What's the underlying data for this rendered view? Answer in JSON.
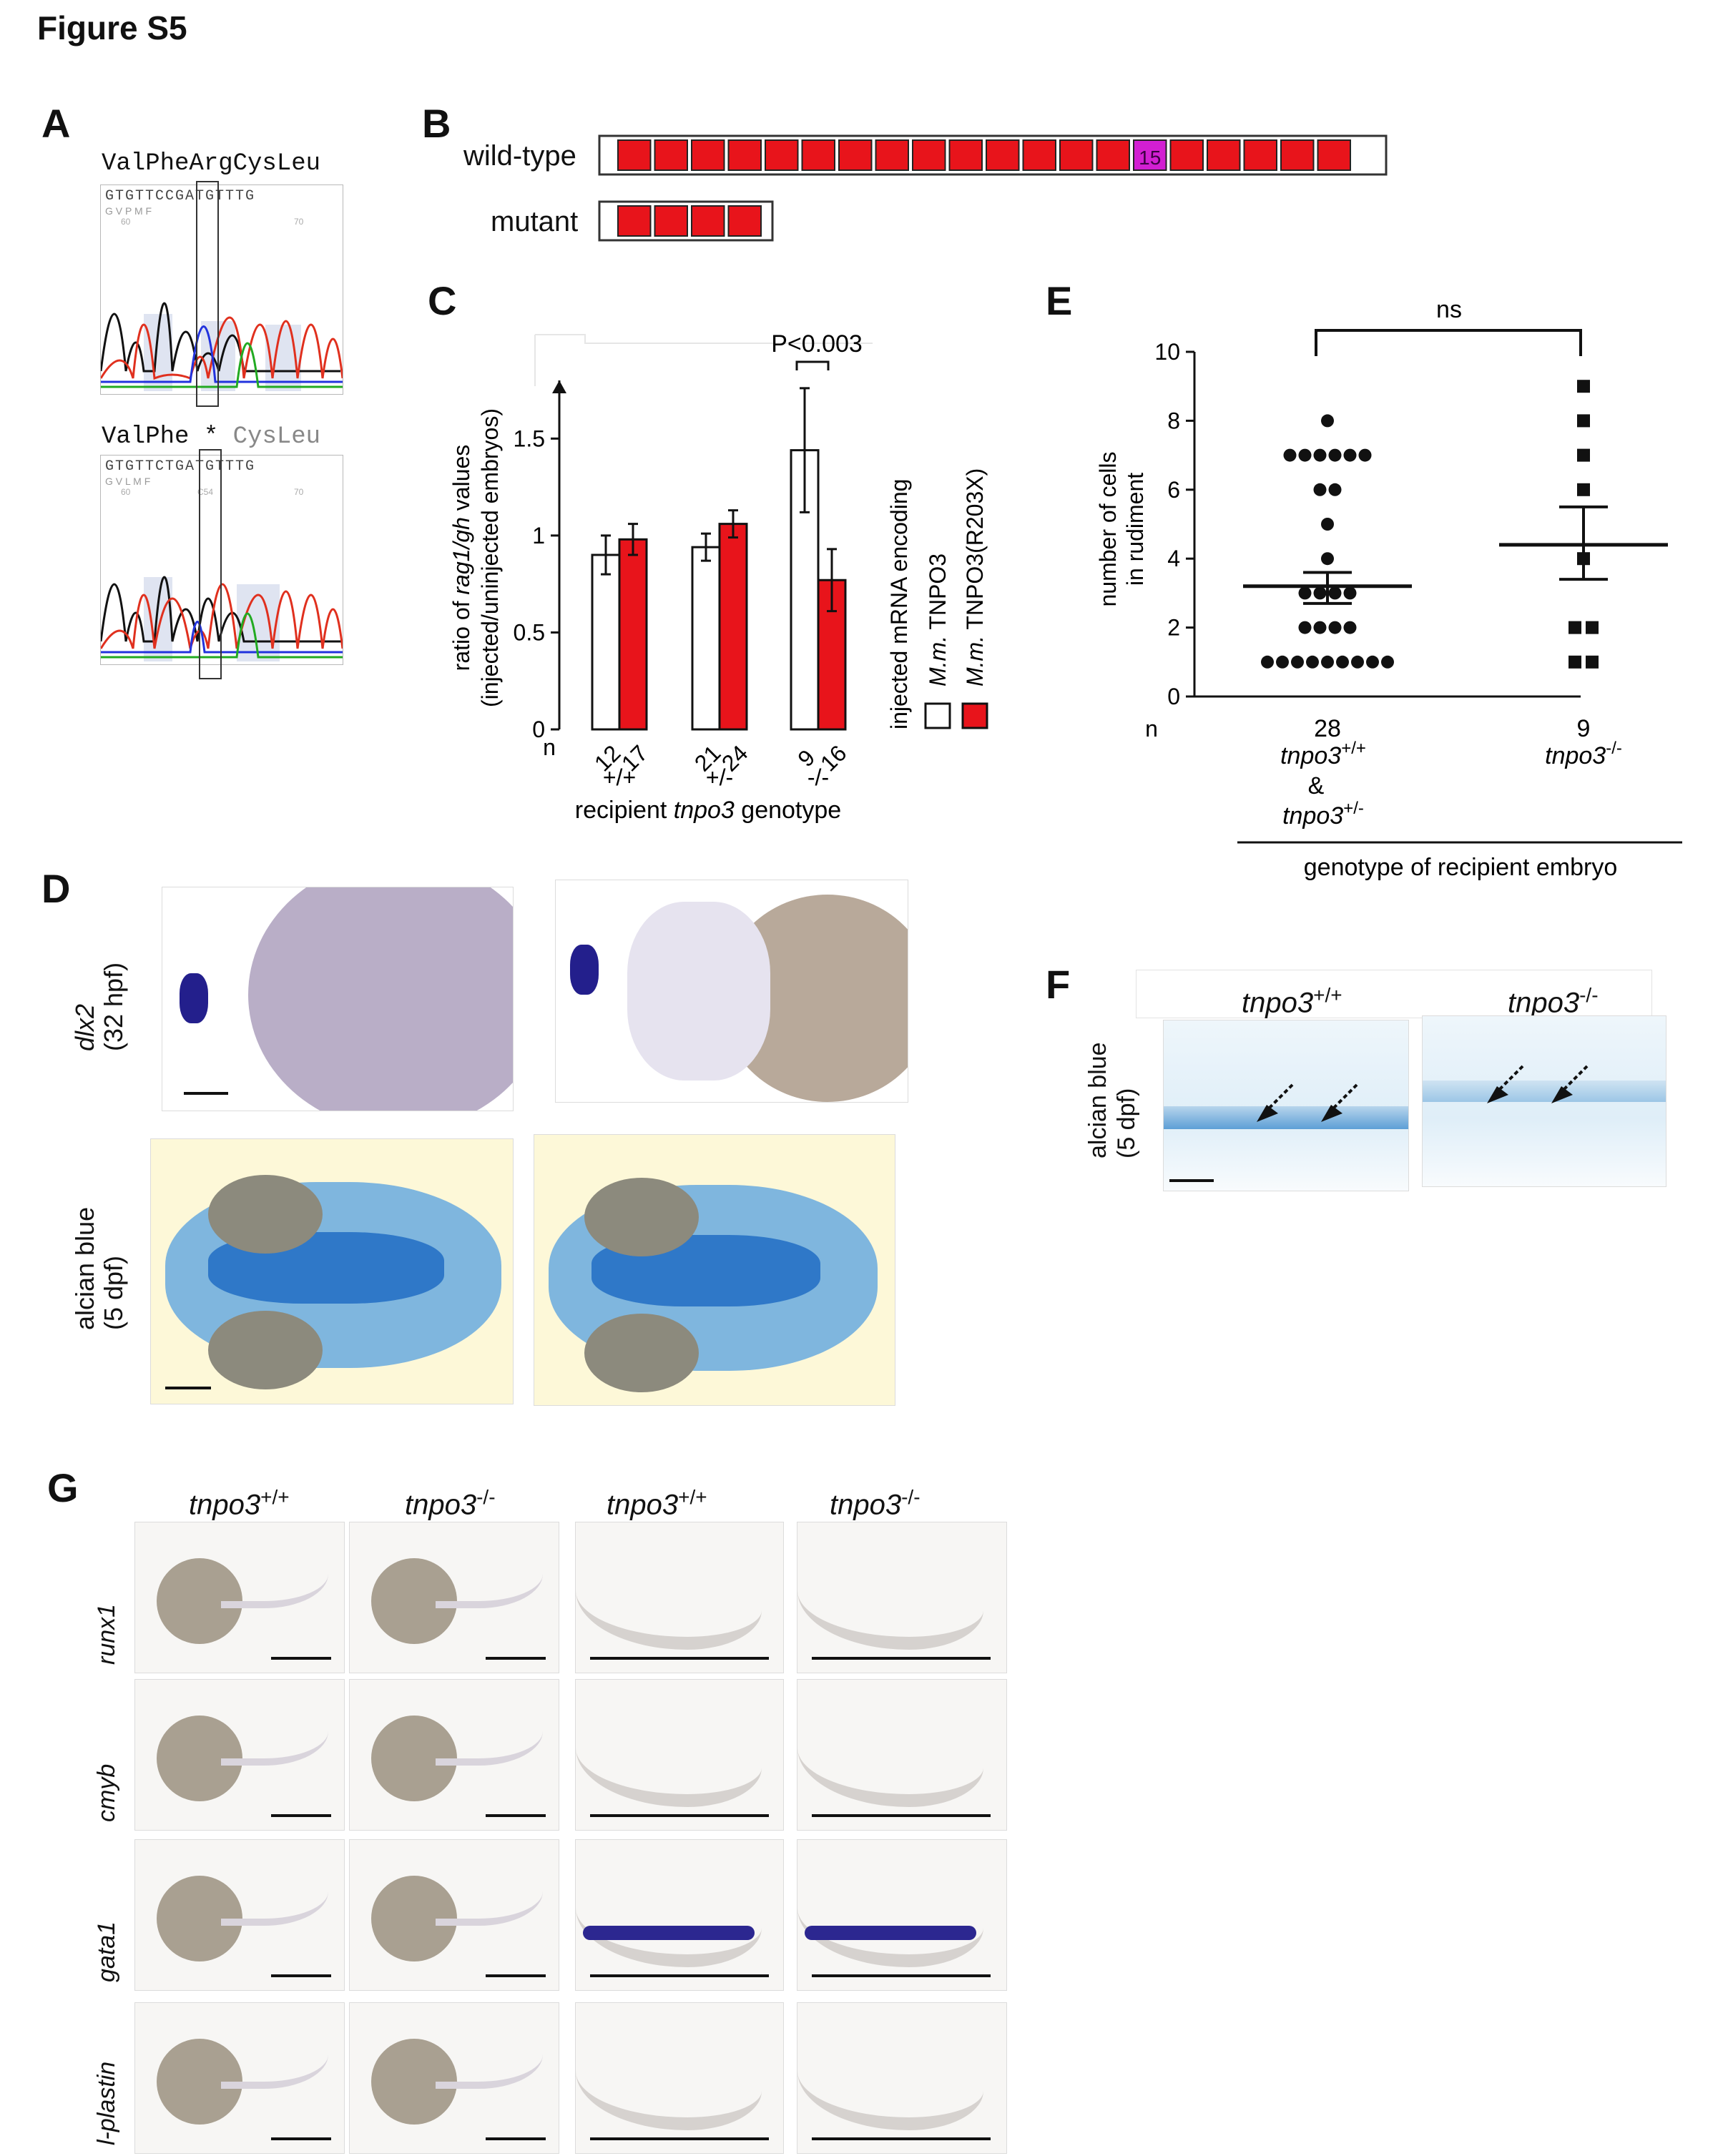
{
  "figure": {
    "title": "Figure S5"
  },
  "panels": {
    "A": "A",
    "B": "B",
    "C": "C",
    "D": "D",
    "E": "E",
    "F": "F",
    "G": "G"
  },
  "panelA": {
    "wt_codons": "ValPheArgCysLeu",
    "mut_codons_left": "ValPhe",
    "mut_stop": "*",
    "mut_codons_right": "CysLeu",
    "wt_seq": "GTGTTCCGATGTTTG",
    "mut_seq": "GTGTTCTGATGTTTG",
    "wt_aa": "G  V  P  M  F",
    "mut_aa": "G  V  L  M  F",
    "wt_pos1": "60",
    "wt_pos2": "70",
    "mut_pos1": "60",
    "mut_pos2": "70",
    "mut_pos_c": "C54"
  },
  "panelB": {
    "wt_label": "wild-type",
    "mut_label": "mutant",
    "wt_blocks": 20,
    "mut_blocks": 4,
    "highlight_block_label": "15",
    "colors": {
      "block": "#e8141b",
      "highlight": "#d21fd2"
    }
  },
  "panelC": {
    "chart_data": {
      "type": "bar",
      "categories": [
        "+/+",
        "+/-",
        "-/-"
      ],
      "series": [
        {
          "name": "M.m. TNPO3",
          "values": [
            0.9,
            0.94,
            1.44
          ],
          "errors": [
            0.1,
            0.07,
            0.32
          ],
          "n": [
            "12",
            "21",
            "9"
          ],
          "color": "#ffffff"
        },
        {
          "name": "M.m. TNPO3(R203X)",
          "values": [
            0.98,
            1.06,
            0.77
          ],
          "errors": [
            0.08,
            0.07,
            0.16
          ],
          "n": [
            "17",
            "24",
            "16"
          ],
          "color": "#e8141b"
        }
      ],
      "ylim": [
        0,
        1.8
      ],
      "yticks": [
        "0",
        "0.5",
        "1",
        "1.5"
      ],
      "ylabel_line1_pre": "ratio of ",
      "ylabel_line1_italic": "rag1/gh",
      "ylabel_line1_post": " values",
      "ylabel_line2": "(injected/uninjected embryos)",
      "xlabel_pre": "recipient ",
      "xlabel_italic": "tnpo3",
      "xlabel_post": " genotype",
      "n_label": "n",
      "significance": "P<0.003",
      "legend_title": "injected mRNA encoding",
      "legend_prefix": "M.m.",
      "legend_items": [
        "TNPO3",
        "TNPO3(R203X)"
      ]
    }
  },
  "panelE": {
    "chart_data": {
      "type": "scatter",
      "categories": [
        "tnpo3+/+ & tnpo3+/-",
        "tnpo3-/-"
      ],
      "groups": [
        {
          "points": [
            8,
            7,
            7,
            7,
            7,
            7,
            7,
            6,
            6,
            5,
            4,
            3,
            3,
            3,
            3,
            2,
            2,
            2,
            2,
            1,
            1,
            1,
            1,
            1,
            1,
            1,
            1,
            1
          ],
          "mean": 3.2,
          "sem_low": 2.7,
          "sem_high": 3.6
        },
        {
          "points": [
            9,
            8,
            7,
            6,
            4,
            2,
            2,
            1,
            1
          ],
          "mean": 4.4,
          "sem_low": 3.4,
          "sem_high": 5.5
        }
      ],
      "ylim": [
        0,
        10
      ],
      "yticks": [
        "0",
        "2",
        "4",
        "6",
        "8",
        "10"
      ],
      "ylabel_line1": "number of cells",
      "ylabel_line2": "in rudiment",
      "n_label": "n",
      "n_values": [
        "28",
        "9"
      ],
      "significance": "ns",
      "xlabel": "genotype of recipient embryo",
      "g1_a": "tnpo3",
      "g1_a_sup": "+/+",
      "g1_amp": "&",
      "g1_b": "tnpo3",
      "g1_b_sup": "+/-",
      "g2": "tnpo3",
      "g2_sup": "-/-"
    }
  },
  "panelD": {
    "row1_label_italic": "dlx2",
    "row1_label_sub": "(32 hpf)",
    "row2_label": "alcian blue",
    "row2_label_sub": "(5 dpf)"
  },
  "panelF": {
    "col1": "tnpo3",
    "col1_sup": "+/+",
    "col2": "tnpo3",
    "col2_sup": "-/-",
    "side_label": "alcian blue",
    "side_label_sub": "(5 dpf)"
  },
  "panelG": {
    "col_base": "tnpo3",
    "col_sups": [
      "+/+",
      "-/-",
      "+/+",
      "-/-"
    ],
    "rows": [
      "runx1",
      "cmyb",
      "gata1",
      "l-plastin"
    ]
  }
}
